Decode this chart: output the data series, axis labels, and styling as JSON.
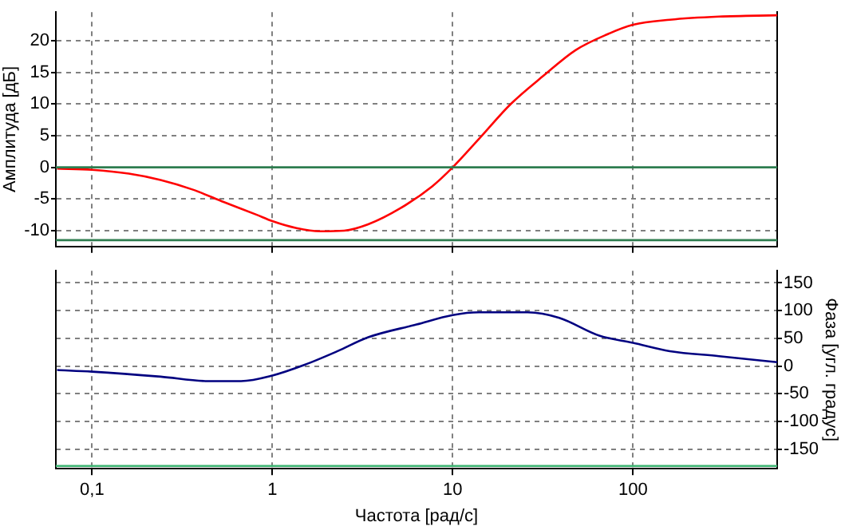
{
  "chart_data": [
    {
      "type": "line",
      "ylabel": "Амплитуда [дБ]",
      "log": "x",
      "grid": true,
      "tick_labels": "y",
      "marker": "none",
      "xlim": [
        0.063,
        630
      ],
      "xticks": [
        {
          "value": 0.1,
          "label": null
        },
        {
          "value": 1,
          "label": null
        },
        {
          "value": 10,
          "label": null
        },
        {
          "value": 100,
          "label": null
        }
      ],
      "ylim": [
        -12.5,
        24.5
      ],
      "yticks": [
        -10,
        -5,
        0,
        5,
        10,
        15,
        20
      ],
      "ref_lines": [
        {
          "axis": "y",
          "value": 0,
          "color": "#2e7d4f"
        },
        {
          "axis": "y",
          "value": -11.5,
          "color": "#2e7d4f"
        }
      ],
      "series": [
        {
          "color": "#ff0000",
          "x": [
            0.064,
            0.1,
            0.16,
            0.24,
            0.36,
            0.54,
            0.82,
            1,
            1.36,
            1.84,
            2.5,
            3.4,
            5.1,
            7.7,
            10,
            14,
            21,
            32,
            48,
            72,
            100,
            160,
            300,
            630
          ],
          "values": [
            -0.2,
            -0.4,
            -1,
            -2,
            -3.5,
            -5.5,
            -7.5,
            -8.5,
            -9.6,
            -10.1,
            -10,
            -9,
            -6.5,
            -3,
            0,
            4.5,
            10,
            14.5,
            18.5,
            21,
            22.5,
            23.3,
            23.8,
            24
          ]
        }
      ]
    },
    {
      "type": "line",
      "xlabel": "Частота [рад/с]",
      "y2label": "Фаза [угл. градус]",
      "log": "x",
      "grid": true,
      "marker": "none",
      "xlim": [
        0.063,
        630
      ],
      "xticks": [
        {
          "value": 0.1,
          "label": "0,1"
        },
        1,
        10,
        100
      ],
      "y2lim": [
        -185,
        172
      ],
      "y2ticks": [
        -150,
        -100,
        -50,
        0,
        50,
        100,
        150
      ],
      "ref_lines": [
        {
          "axis": "y2",
          "value": -180,
          "color": "#3cb371"
        }
      ],
      "series": [
        {
          "color": "#000080",
          "axis": "y2",
          "x": [
            0.064,
            0.1,
            0.24,
            0.44,
            0.67,
            1,
            1.5,
            2.3,
            3.4,
            6.3,
            10,
            14,
            26,
            39,
            65,
            100,
            160,
            300,
            630
          ],
          "values": [
            -7,
            -10,
            -19,
            -27,
            -27,
            -17,
            2,
            27,
            52,
            75,
            92,
            97,
            97,
            87,
            55,
            42,
            27,
            18,
            7
          ]
        }
      ]
    }
  ]
}
